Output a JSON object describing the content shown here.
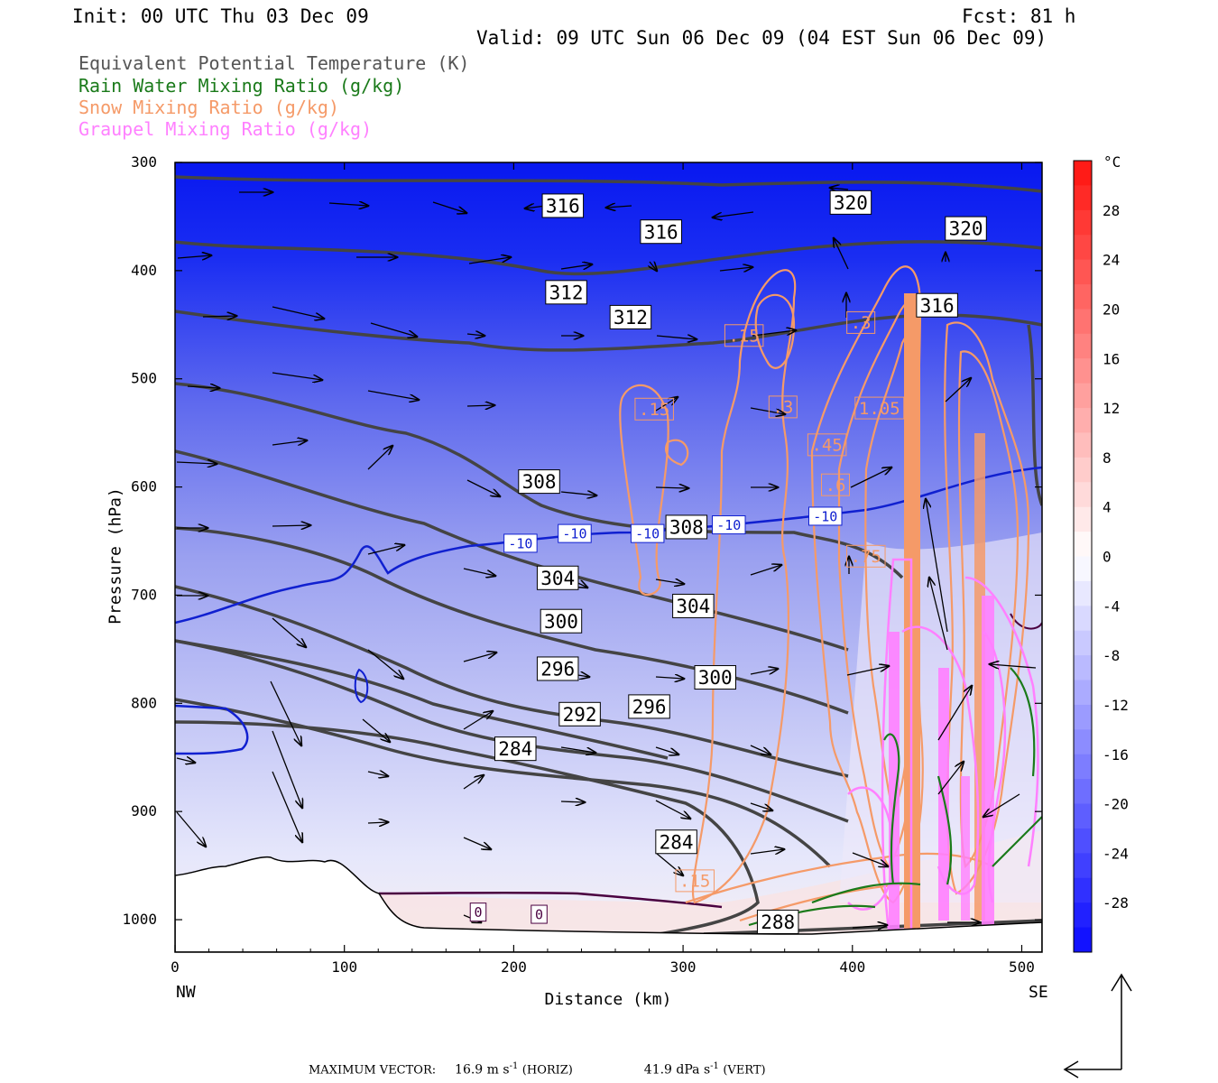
{
  "header": {
    "init": "Init: 00 UTC Thu 03 Dec 09",
    "fcst": "Fcst:   81 h",
    "valid": "Valid: 09 UTC Sun 06 Dec 09 (04 EST Sun 06 Dec 09)"
  },
  "legend": [
    {
      "label": "Equivalent Potential Temperature (K)",
      "color": "#555555"
    },
    {
      "label": "Rain Water Mixing Ratio (g/kg)",
      "color": "#1a7a1a"
    },
    {
      "label": "Snow Mixing Ratio (g/kg)",
      "color": "#f59a68"
    },
    {
      "label": "Graupel Mixing Ratio (g/kg)",
      "color": "#ff80ff"
    }
  ],
  "chart_data": {
    "type": "cross-section",
    "xlabel": "Distance (km)",
    "ylabel": "Pressure (hPa)",
    "x_ticks": [
      0,
      100,
      200,
      300,
      400,
      500
    ],
    "y_ticks": [
      300,
      400,
      500,
      600,
      700,
      800,
      900,
      1000
    ],
    "xlim": [
      0,
      512
    ],
    "ylim": [
      300,
      1030
    ],
    "left_endpoint": "NW",
    "right_endpoint": "SE",
    "colorbar": {
      "unit": "°C",
      "ticks": [
        28,
        24,
        20,
        16,
        12,
        8,
        4,
        0,
        -4,
        -8,
        -12,
        -16,
        -20,
        -24,
        -28
      ],
      "range": [
        -32,
        32
      ]
    },
    "theta_e_labels": [
      {
        "text": "316",
        "x": 229,
        "p": 340
      },
      {
        "text": "316",
        "x": 287,
        "p": 364
      },
      {
        "text": "320",
        "x": 399,
        "p": 337
      },
      {
        "text": "320",
        "x": 467,
        "p": 361
      },
      {
        "text": "312",
        "x": 231,
        "p": 420
      },
      {
        "text": "312",
        "x": 269,
        "p": 443
      },
      {
        "text": "316",
        "x": 450,
        "p": 432
      },
      {
        "text": "308",
        "x": 215,
        "p": 595
      },
      {
        "text": "308",
        "x": 302,
        "p": 637
      },
      {
        "text": "304",
        "x": 226,
        "p": 684
      },
      {
        "text": "304",
        "x": 306,
        "p": 710
      },
      {
        "text": "300",
        "x": 228,
        "p": 724
      },
      {
        "text": "300",
        "x": 319,
        "p": 776
      },
      {
        "text": "296",
        "x": 226,
        "p": 768
      },
      {
        "text": "296",
        "x": 280,
        "p": 803
      },
      {
        "text": "292",
        "x": 239,
        "p": 810
      },
      {
        "text": "284",
        "x": 201,
        "p": 842
      },
      {
        "text": "284",
        "x": 296,
        "p": 928
      },
      {
        "text": "288",
        "x": 356,
        "p": 1002
      }
    ],
    "temperature_contour_labels": [
      {
        "text": "-10",
        "x": 204,
        "p": 652
      },
      {
        "text": "-10",
        "x": 236,
        "p": 643
      },
      {
        "text": "-10",
        "x": 279,
        "p": 643
      },
      {
        "text": "-10",
        "x": 327,
        "p": 635
      },
      {
        "text": "-10",
        "x": 384,
        "p": 627
      },
      {
        "text": "0",
        "x": 179,
        "p": 993
      },
      {
        "text": "0",
        "x": 215,
        "p": 995
      }
    ],
    "snow_labels": [
      {
        "text": ".15",
        "x": 336,
        "p": 460
      },
      {
        "text": ".15",
        "x": 283,
        "p": 528
      },
      {
        "text": ".3",
        "x": 359,
        "p": 526
      },
      {
        "text": ".3",
        "x": 405,
        "p": 448
      },
      {
        "text": "1.05",
        "x": 416,
        "p": 527
      },
      {
        "text": ".45",
        "x": 385,
        "p": 561
      },
      {
        "text": ".6",
        "x": 390,
        "p": 598
      },
      {
        "text": ".75",
        "x": 408,
        "p": 664
      },
      {
        "text": ".15",
        "x": 307,
        "p": 964
      }
    ],
    "max_vector": {
      "label": "MAXIMUM VECTOR:",
      "horiz_value": "16.9",
      "horiz_unit": "m s",
      "horiz_tag": "(HORIZ)",
      "vert_value": "41.9",
      "vert_unit": "dPa s",
      "vert_tag": "(VERT)",
      "exponent": "-1"
    }
  }
}
